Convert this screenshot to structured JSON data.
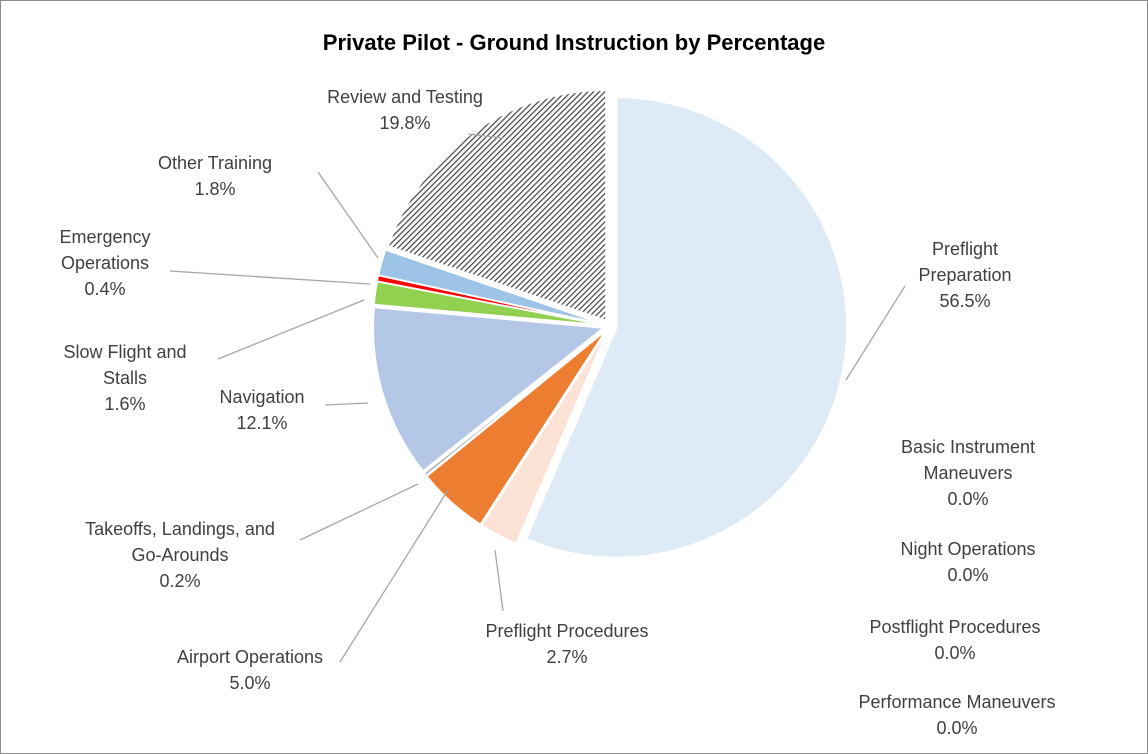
{
  "chart_data": {
    "type": "pie",
    "title": "Private Pilot - Ground Instruction by Percentage",
    "categories": [
      "Preflight Preparation",
      "Basic Instrument Maneuvers",
      "Night Operations",
      "Postflight Procedures",
      "Performance Maneuvers",
      "Preflight Procedures",
      "Airport Operations",
      "Takeoffs, Landings, and Go-Arounds",
      "Navigation",
      "Slow Flight and Stalls",
      "Emergency Operations",
      "Other Training",
      "Review and Testing"
    ],
    "values": [
      56.5,
      0,
      0,
      0,
      0,
      2.7,
      5.0,
      0.2,
      12.1,
      1.6,
      0.4,
      1.8,
      19.8
    ],
    "value_labels": [
      "56.5%",
      "0.0%",
      "0.0%",
      "0.0%",
      "0.0%",
      "2.7%",
      "5.0%",
      "0.2%",
      "12.1%",
      "1.6%",
      "0.4%",
      "1.8%",
      "19.8%"
    ],
    "colors": [
      "#deebf7",
      "#a5a5a5",
      "#5b9bd5",
      "#ffc000",
      "#70ad47",
      "#fbe2d5",
      "#ed7d31",
      "#a5a5a5",
      "#b4c7e7",
      "#92d050",
      "#ff0000",
      "#9dc3e6",
      "#404040"
    ],
    "hatched_categories": [
      "Review and Testing"
    ]
  }
}
